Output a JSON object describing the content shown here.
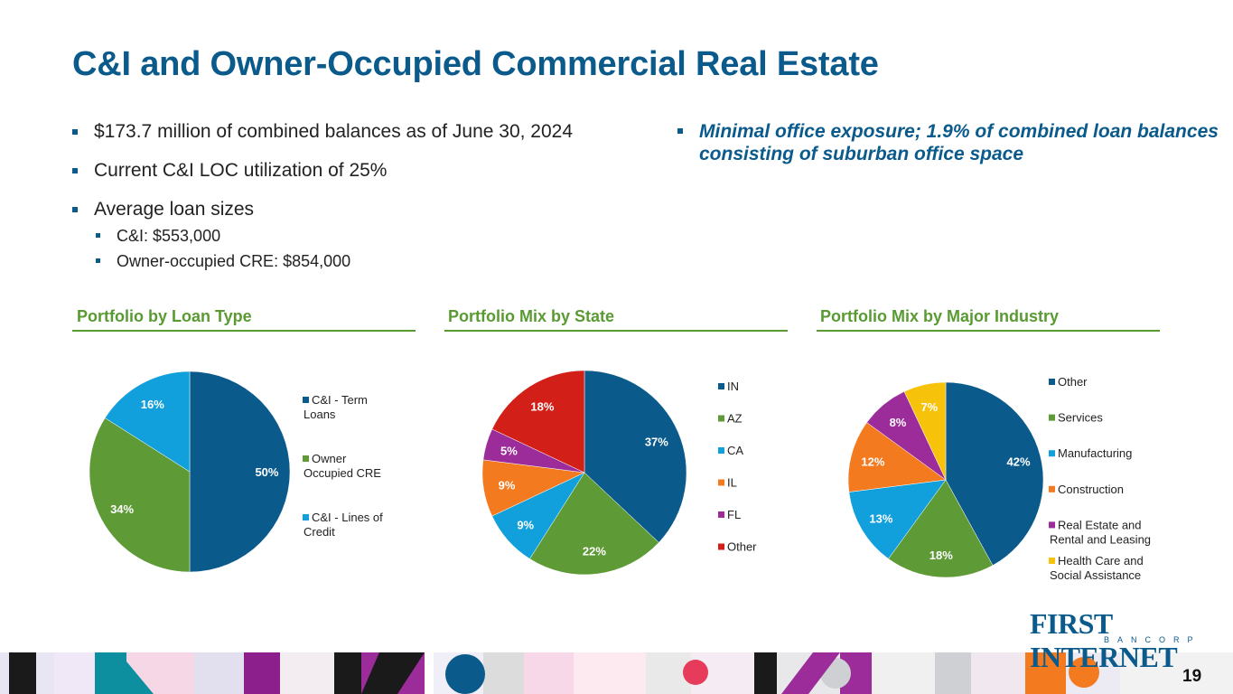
{
  "title": "C&I and Owner-Occupied Commercial Real Estate",
  "bullets_left": [
    "$173.7 million of combined balances as of June 30, 2024",
    "Current C&I LOC utilization of 25%",
    "Average loan sizes"
  ],
  "sub_bullets": [
    "C&I: $553,000",
    "Owner-occupied CRE: $854,000"
  ],
  "bullet_right": "Minimal office exposure; 1.9% of combined loan balances consisting of suburban office space",
  "logo": {
    "name": "FIRST INTERNET",
    "sub": "BANCORP",
    "color": "#0a5a8c"
  },
  "page_number": "19",
  "colors": {
    "title": "#0a5a8c",
    "accent": "#5a9a32"
  },
  "chart_data": [
    {
      "type": "pie",
      "title": "Portfolio by Loan Type",
      "labels": [
        "C&I - Term Loans",
        "Owner Occupied CRE",
        "C&I - Lines of Credit"
      ],
      "legend_lines": [
        [
          "C&I - Term",
          "Loans"
        ],
        [
          "Owner",
          "Occupied CRE"
        ],
        [
          "C&I - Lines of",
          "Credit"
        ]
      ],
      "values": [
        50,
        34,
        16
      ],
      "value_labels": [
        "50%",
        "34%",
        "16%"
      ],
      "colors": [
        "#0b5a8c",
        "#5e9a35",
        "#12a0dc"
      ],
      "legend_position": "right"
    },
    {
      "type": "pie",
      "title": "Portfolio Mix by State",
      "labels": [
        "IN",
        "AZ",
        "CA",
        "IL",
        "FL",
        "Other"
      ],
      "legend_lines": [
        [
          "IN"
        ],
        [
          "AZ"
        ],
        [
          "CA"
        ],
        [
          "IL"
        ],
        [
          "FL"
        ],
        [
          "Other"
        ]
      ],
      "values": [
        37,
        22,
        9,
        9,
        5,
        18
      ],
      "value_labels": [
        "37%",
        "22%",
        "9%",
        "9%",
        "5%",
        "18%"
      ],
      "colors": [
        "#0b5a8c",
        "#5e9a35",
        "#12a0dc",
        "#f47a20",
        "#9b2c9a",
        "#d21f18"
      ],
      "legend_position": "right"
    },
    {
      "type": "pie",
      "title": "Portfolio Mix by Major Industry",
      "labels": [
        "Other",
        "Services",
        "Manufacturing",
        "Construction",
        "Real Estate and Rental and Leasing",
        "Health Care and Social Assistance"
      ],
      "legend_lines": [
        [
          "Other"
        ],
        [
          "Services"
        ],
        [
          "Manufacturing"
        ],
        [
          "Construction"
        ],
        [
          "Real Estate and",
          "Rental and Leasing"
        ],
        [
          "Health Care and",
          "Social Assistance"
        ]
      ],
      "values": [
        42,
        18,
        13,
        12,
        8,
        7
      ],
      "value_labels": [
        "42%",
        "18%",
        "13%",
        "12%",
        "8%",
        "7%"
      ],
      "colors": [
        "#0b5a8c",
        "#5e9a35",
        "#12a0dc",
        "#f47a20",
        "#9b2c9a",
        "#f7c20a"
      ],
      "legend_position": "right"
    }
  ]
}
